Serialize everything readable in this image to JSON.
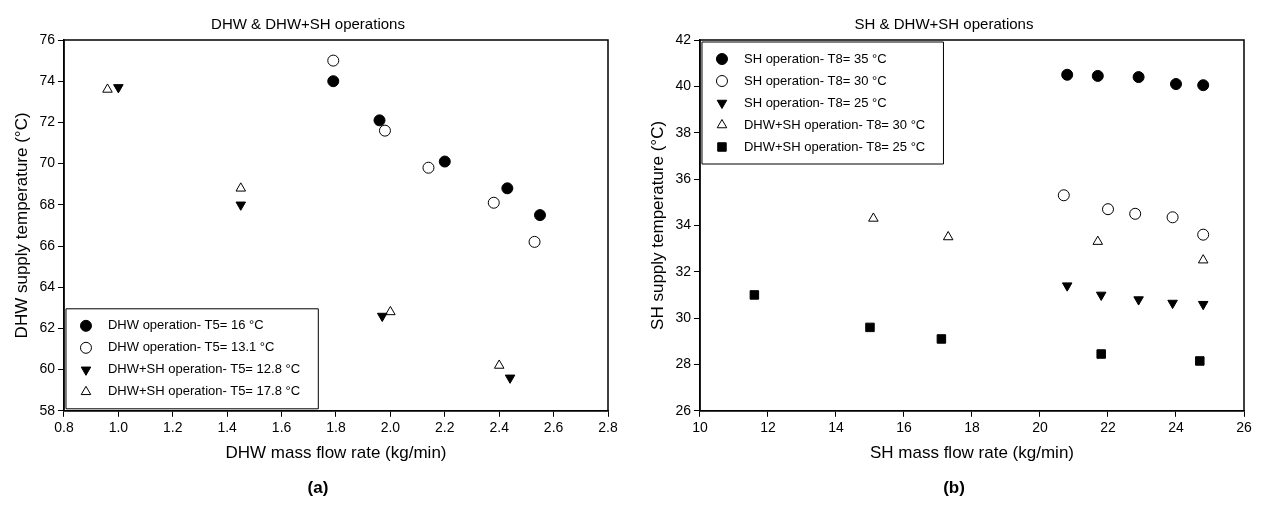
{
  "chart_data": [
    {
      "type": "scatter",
      "title": "DHW & DHW+SH operations",
      "xlabel": "DHW mass flow rate (kg/min)",
      "ylabel": "DHW supply temperature (°C)",
      "xlim": [
        0.8,
        2.8
      ],
      "xticks": [
        0.8,
        {
          "value": 1,
          "label": "1.0"
        },
        1.2,
        1.4,
        1.6,
        1.8,
        {
          "value": 2,
          "label": "2.0"
        },
        2.2,
        2.4,
        2.6,
        2.8
      ],
      "ylim": [
        58,
        76
      ],
      "yticks": [
        58,
        60,
        62,
        64,
        66,
        68,
        70,
        72,
        74,
        76
      ],
      "grid": false,
      "legend": "bottom left",
      "annotations": [
        "(a)"
      ],
      "series": [
        {
          "name": "DHW operation- T5= 16 °C",
          "color": "#000000",
          "marker": "circle",
          "x": [
            1.79,
            1.96,
            2.2,
            2.43,
            2.55
          ],
          "values": [
            74.0,
            72.1,
            70.1,
            68.8,
            67.5
          ]
        },
        {
          "name": "DHW operation- T5= 13.1 °C",
          "color": "#ffffff",
          "marker": "circle",
          "x": [
            1.79,
            1.98,
            2.14,
            2.38,
            2.53
          ],
          "values": [
            75.0,
            71.6,
            69.8,
            68.1,
            66.2
          ]
        },
        {
          "name": "DHW+SH operation- T5= 12.8 °C",
          "color": "#000000",
          "marker": "triangle-down",
          "x": [
            1.0,
            1.45,
            1.97,
            2.44
          ],
          "values": [
            73.7,
            68.0,
            62.6,
            59.6
          ]
        },
        {
          "name": "DHW+SH operation- T5= 17.8 °C",
          "color": "#ffffff",
          "marker": "triangle",
          "x": [
            0.96,
            1.45,
            2.0,
            2.4
          ],
          "values": [
            73.6,
            68.8,
            62.8,
            60.2
          ]
        }
      ]
    },
    {
      "type": "scatter",
      "title": "SH & DHW+SH operations",
      "xlabel": "SH mass flow rate (kg/min)",
      "ylabel": "SH supply temperature (°C)",
      "xlim": [
        10,
        26
      ],
      "xticks": [
        10,
        12,
        14,
        16,
        18,
        20,
        22,
        24,
        26
      ],
      "ylim": [
        26,
        42
      ],
      "yticks": [
        26,
        28,
        30,
        32,
        34,
        36,
        38,
        40,
        42
      ],
      "grid": false,
      "legend": "top left",
      "annotations": [
        "(b)"
      ],
      "series": [
        {
          "name": "SH operation- T8= 35 °C",
          "color": "#000000",
          "marker": "circle",
          "x": [
            20.8,
            21.7,
            22.9,
            24.0,
            24.8
          ],
          "values": [
            40.5,
            40.45,
            40.4,
            40.1,
            40.05
          ]
        },
        {
          "name": "SH operation- T8= 30 °C",
          "color": "#ffffff",
          "marker": "circle",
          "x": [
            20.7,
            22.0,
            22.8,
            23.9,
            24.8
          ],
          "values": [
            35.3,
            34.7,
            34.5,
            34.35,
            33.6
          ]
        },
        {
          "name": "SH operation- T8= 25 °C",
          "color": "#000000",
          "marker": "triangle-down",
          "x": [
            20.8,
            21.8,
            22.9,
            23.9,
            24.8
          ],
          "values": [
            31.4,
            31.0,
            30.8,
            30.65,
            30.6
          ]
        },
        {
          "name": "DHW+SH operation- T8= 30 °C",
          "color": "#ffffff",
          "marker": "triangle",
          "x": [
            15.1,
            17.3,
            21.7,
            24.8
          ],
          "values": [
            34.3,
            33.5,
            33.3,
            32.5
          ]
        },
        {
          "name": "DHW+SH operation- T8= 25 °C",
          "color": "#000000",
          "marker": "square",
          "x": [
            11.6,
            15.0,
            17.1,
            21.8,
            24.7
          ],
          "values": [
            31.0,
            29.6,
            29.1,
            28.45,
            28.15
          ]
        }
      ]
    }
  ]
}
